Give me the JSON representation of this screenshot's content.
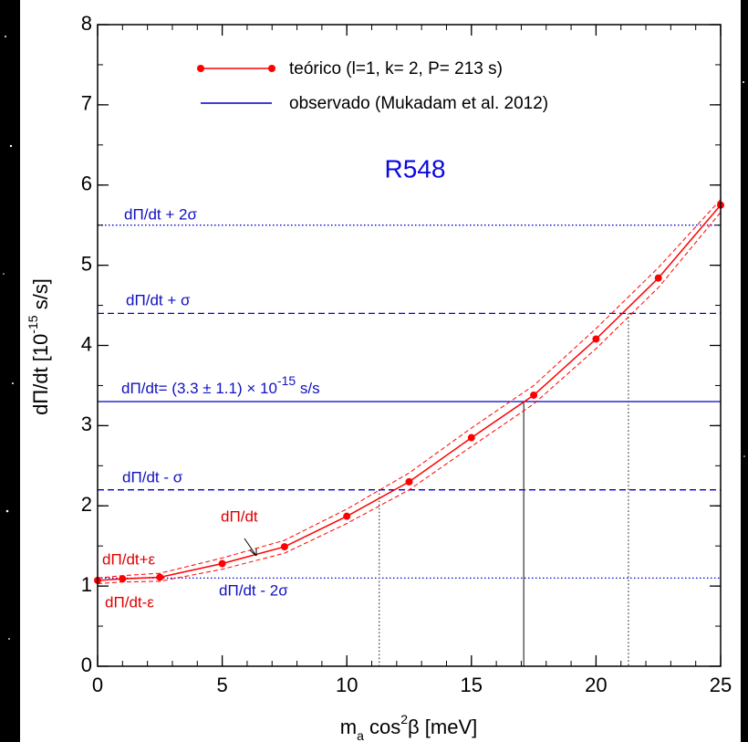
{
  "chart_data": {
    "type": "line",
    "title": "R548",
    "xlabel": {
      "parts": [
        "m",
        "a",
        " cos",
        "2",
        "β [meV]"
      ]
    },
    "ylabel": {
      "parts": [
        "dΠ/dt  [10",
        "-15",
        " s/s]"
      ]
    },
    "x": [
      0,
      1,
      2.5,
      5,
      7.5,
      10,
      12.5,
      15,
      17.5,
      20,
      22.5,
      25
    ],
    "series": [
      {
        "name": "teórico (l=1, k= 2, P= 213 s)",
        "color": "#ff0000",
        "values": [
          1.07,
          1.09,
          1.11,
          1.28,
          1.49,
          1.87,
          2.3,
          2.85,
          3.38,
          4.08,
          4.84,
          5.75
        ]
      }
    ],
    "error_band": {
      "upper": [
        1.1,
        1.13,
        1.16,
        1.35,
        1.57,
        1.96,
        2.41,
        2.97,
        3.5,
        4.21,
        4.97,
        5.82
      ],
      "lower": [
        1.03,
        1.05,
        1.06,
        1.21,
        1.41,
        1.78,
        2.2,
        2.74,
        3.27,
        3.96,
        4.72,
        5.66
      ]
    },
    "observed": {
      "name": "observado (Mukadam et al. 2012)",
      "color": "#0000cc",
      "value": 3.3,
      "label_parts": [
        "dΠ/dt= (3.3 ± 1.1) × 10",
        "-15",
        " s/s"
      ]
    },
    "sigma_lines": [
      {
        "value": 5.5,
        "label": "dΠ/dt + 2σ",
        "style": "dotted"
      },
      {
        "value": 4.4,
        "label": "dΠ/dt + σ",
        "style": "dashed"
      },
      {
        "value": 2.2,
        "label": "dΠ/dt - σ",
        "style": "dashed"
      },
      {
        "value": 1.1,
        "label": "dΠ/dt - 2σ",
        "style": "dotted"
      }
    ],
    "intersections": [
      {
        "x": 11.3,
        "y": 2.2,
        "style": "dotted"
      },
      {
        "x": 17.1,
        "y": 3.3,
        "style": "solid"
      },
      {
        "x": 21.3,
        "y": 4.4,
        "style": "dotted"
      }
    ],
    "curve_labels": [
      "dΠ/dt",
      "dΠ/dt+ε",
      "dΠ/dt-ε"
    ],
    "xlim": [
      0,
      25
    ],
    "xticks": [
      0,
      5,
      10,
      15,
      20,
      25
    ],
    "xminorticks": [
      0,
      1,
      2,
      3,
      4,
      5,
      6,
      7,
      8,
      9,
      10,
      11,
      12,
      13,
      14,
      15,
      16,
      17,
      18,
      19,
      20,
      21,
      22,
      23,
      24,
      25
    ],
    "ylim": [
      0,
      8
    ],
    "yticks": [
      0,
      1,
      2,
      3,
      4,
      5,
      6,
      7,
      8
    ],
    "yminorticks": [
      0,
      0.5,
      1,
      1.5,
      2,
      2.5,
      3,
      3.5,
      4,
      4.5,
      5,
      5.5,
      6,
      6.5,
      7,
      7.5,
      8
    ],
    "grid": false
  }
}
